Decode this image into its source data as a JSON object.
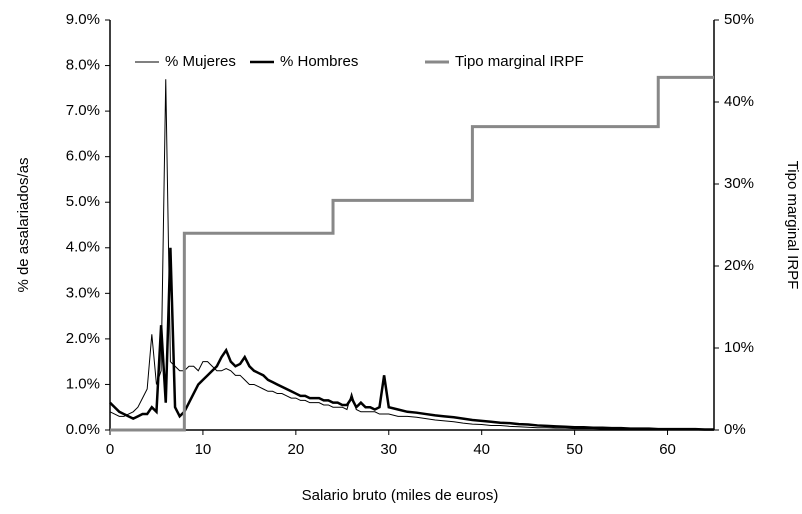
{
  "chart_data": {
    "type": "line",
    "x_label": "Salario bruto (miles de euros)",
    "y_label": "% de asalariados/as",
    "y2_label": "Tipo marginal IRPF",
    "xlim": [
      0,
      65
    ],
    "xticks": [
      0,
      10,
      20,
      30,
      40,
      50,
      60
    ],
    "ylim": [
      0,
      9
    ],
    "yticks": [
      {
        "value": 0,
        "label": "0.0%"
      },
      {
        "value": 1,
        "label": "1.0%"
      },
      {
        "value": 2,
        "label": "2.0%"
      },
      {
        "value": 3,
        "label": "3.0%"
      },
      {
        "value": 4,
        "label": "4.0%"
      },
      {
        "value": 5,
        "label": "5.0%"
      },
      {
        "value": 6,
        "label": "6.0%"
      },
      {
        "value": 7,
        "label": "7.0%"
      },
      {
        "value": 8,
        "label": "8.0%"
      },
      {
        "value": 9,
        "label": "9.0%"
      }
    ],
    "y2lim": [
      0,
      50
    ],
    "y2ticks": [
      {
        "value": 0,
        "label": "0%"
      },
      {
        "value": 10,
        "label": "10%"
      },
      {
        "value": 20,
        "label": "20%"
      },
      {
        "value": 30,
        "label": "30%"
      },
      {
        "value": 40,
        "label": "40%"
      },
      {
        "value": 50,
        "label": "50%"
      }
    ],
    "grid": false,
    "legend": "top",
    "x": [
      0,
      0.5,
      1,
      1.5,
      2,
      2.5,
      3,
      3.5,
      4,
      4.5,
      5,
      5.5,
      6,
      6.5,
      7,
      7.5,
      8,
      8.5,
      9,
      9.5,
      10,
      10.5,
      11,
      11.5,
      12,
      12.5,
      13,
      13.5,
      14,
      14.5,
      15,
      15.5,
      16,
      16.5,
      17,
      17.5,
      18,
      18.5,
      19,
      19.5,
      20,
      20.5,
      21,
      21.5,
      22,
      22.5,
      23,
      23.5,
      24,
      24.5,
      25,
      25.5,
      26,
      26.5,
      27,
      27.5,
      28,
      28.5,
      29,
      29.5,
      30,
      31,
      32,
      33,
      34,
      35,
      36,
      37,
      38,
      39,
      40,
      41,
      42,
      43,
      44,
      45,
      46,
      47,
      48,
      49,
      50,
      51,
      52,
      53,
      54,
      55,
      56,
      57,
      58,
      59,
      60,
      61,
      62,
      63,
      64,
      65
    ],
    "series": [
      {
        "name": "% Mujeres",
        "color": "#000000",
        "width": 1,
        "values": [
          0.4,
          0.35,
          0.3,
          0.3,
          0.35,
          0.4,
          0.5,
          0.7,
          0.9,
          2.1,
          1.0,
          1.3,
          7.7,
          1.5,
          1.4,
          1.3,
          1.3,
          1.4,
          1.4,
          1.3,
          1.5,
          1.5,
          1.4,
          1.3,
          1.3,
          1.35,
          1.3,
          1.2,
          1.2,
          1.1,
          1.0,
          1.0,
          0.95,
          0.9,
          0.85,
          0.85,
          0.8,
          0.8,
          0.75,
          0.7,
          0.7,
          0.65,
          0.65,
          0.6,
          0.6,
          0.6,
          0.55,
          0.55,
          0.5,
          0.5,
          0.5,
          0.45,
          0.8,
          0.45,
          0.4,
          0.4,
          0.4,
          0.4,
          0.35,
          0.35,
          0.35,
          0.3,
          0.3,
          0.28,
          0.25,
          0.22,
          0.2,
          0.18,
          0.15,
          0.13,
          0.12,
          0.1,
          0.1,
          0.08,
          0.07,
          0.06,
          0.05,
          0.05,
          0.04,
          0.04,
          0.03,
          0.03,
          0.03,
          0.02,
          0.02,
          0.02,
          0.02,
          0.01,
          0.01,
          0.01,
          0.01,
          0.01,
          0.01,
          0.01,
          0.01,
          0.01
        ]
      },
      {
        "name": "% Hombres",
        "color": "#000000",
        "width": 2.5,
        "values": [
          0.6,
          0.5,
          0.4,
          0.35,
          0.3,
          0.25,
          0.3,
          0.35,
          0.35,
          0.5,
          0.4,
          2.3,
          0.6,
          4.0,
          0.5,
          0.3,
          0.4,
          0.6,
          0.8,
          1.0,
          1.1,
          1.2,
          1.3,
          1.4,
          1.6,
          1.75,
          1.5,
          1.4,
          1.45,
          1.6,
          1.4,
          1.3,
          1.25,
          1.2,
          1.1,
          1.05,
          1.0,
          0.95,
          0.9,
          0.85,
          0.8,
          0.75,
          0.75,
          0.7,
          0.7,
          0.7,
          0.65,
          0.65,
          0.6,
          0.6,
          0.55,
          0.55,
          0.7,
          0.5,
          0.6,
          0.5,
          0.5,
          0.45,
          0.5,
          1.2,
          0.5,
          0.45,
          0.4,
          0.38,
          0.35,
          0.32,
          0.3,
          0.28,
          0.25,
          0.22,
          0.2,
          0.18,
          0.16,
          0.15,
          0.13,
          0.12,
          0.1,
          0.09,
          0.08,
          0.07,
          0.06,
          0.06,
          0.05,
          0.05,
          0.04,
          0.04,
          0.03,
          0.03,
          0.03,
          0.02,
          0.02,
          0.02,
          0.02,
          0.02,
          0.01,
          0.01
        ]
      },
      {
        "name": "Tipo marginal IRPF",
        "color": "#888888",
        "width": 3,
        "axis": "y2",
        "x": [
          0,
          8,
          8,
          24,
          24,
          39,
          39,
          59,
          59,
          65
        ],
        "values": [
          0,
          0,
          24,
          24,
          28,
          28,
          37,
          37,
          43,
          43
        ]
      }
    ]
  }
}
